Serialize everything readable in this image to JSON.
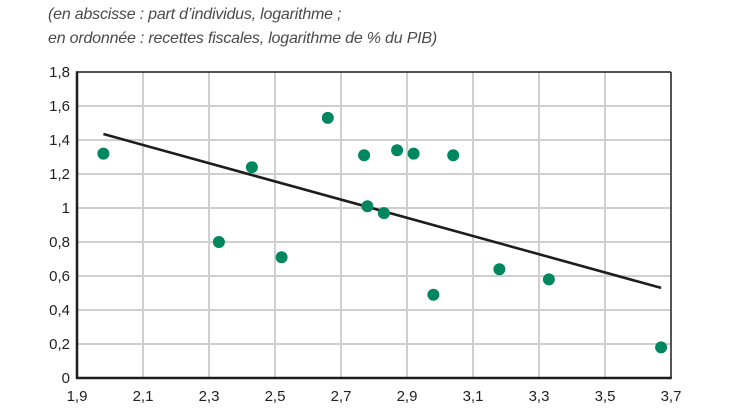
{
  "subtitle": {
    "line1": "(en abscisse : part d’individus, logarithme ;",
    "line2": "en ordonnée : recettes fiscales, logarithme de % du PIB)"
  },
  "colors": {
    "marker": "#00875f",
    "trendline": "#1d1d1b",
    "grid": "#cfcfcf",
    "axis": "#1d1d1b"
  },
  "chart_data": {
    "type": "scatter",
    "title": "",
    "subtitle": "(en abscisse : part d’individus, logarithme ; en ordonnée : recettes fiscales, logarithme de % du PIB)",
    "xlabel": "part d’individus, logarithme",
    "ylabel": "recettes fiscales, logarithme de % du PIB",
    "xlim": [
      1.9,
      3.7
    ],
    "ylim": [
      0,
      1.8
    ],
    "grid": true,
    "legend": null,
    "x_ticks": [
      1.9,
      2.1,
      2.3,
      2.5,
      2.7,
      2.9,
      3.1,
      3.3,
      3.5,
      3.7
    ],
    "x_tick_labels": [
      "1,9",
      "2,1",
      "2,3",
      "2,5",
      "2,7",
      "2,9",
      "3,1",
      "3,3",
      "3,5",
      "3,7"
    ],
    "y_ticks": [
      0,
      0.2,
      0.4,
      0.6,
      0.8,
      1.0,
      1.2,
      1.4,
      1.6,
      1.8
    ],
    "y_tick_labels": [
      "0",
      "0,2",
      "0,4",
      "0,6",
      "0,8",
      "1",
      "1,2",
      "1,4",
      "1,6",
      "1,8"
    ],
    "series": [
      {
        "name": "observations",
        "points": [
          {
            "x": 1.98,
            "y": 1.32
          },
          {
            "x": 2.33,
            "y": 0.8
          },
          {
            "x": 2.43,
            "y": 1.24
          },
          {
            "x": 2.52,
            "y": 0.71
          },
          {
            "x": 2.66,
            "y": 1.53
          },
          {
            "x": 2.77,
            "y": 1.31
          },
          {
            "x": 2.78,
            "y": 1.01
          },
          {
            "x": 2.83,
            "y": 0.97
          },
          {
            "x": 2.87,
            "y": 1.34
          },
          {
            "x": 2.92,
            "y": 1.32
          },
          {
            "x": 2.98,
            "y": 0.49
          },
          {
            "x": 3.04,
            "y": 1.31
          },
          {
            "x": 3.18,
            "y": 0.64
          },
          {
            "x": 3.33,
            "y": 0.58
          },
          {
            "x": 3.67,
            "y": 0.18
          }
        ]
      }
    ],
    "trendline": {
      "name": "linear fit",
      "start": {
        "x": 1.98,
        "y": 1.435
      },
      "end": {
        "x": 3.67,
        "y": 0.53
      }
    }
  }
}
